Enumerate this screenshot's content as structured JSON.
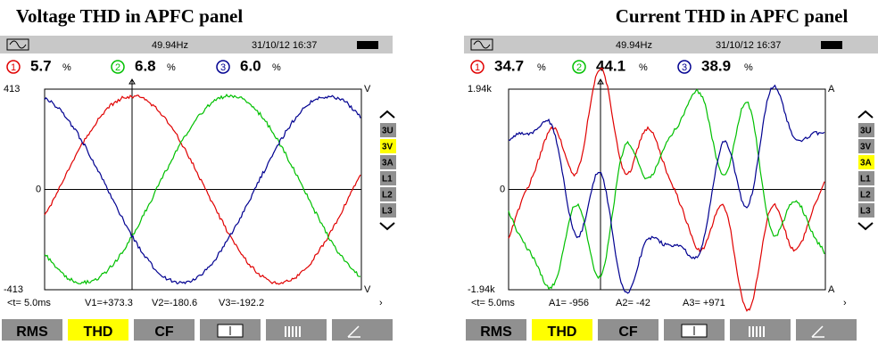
{
  "panels": [
    {
      "title": "Voltage THD in APFC panel",
      "status": {
        "frequency": "49.94Hz",
        "datetime": "31/10/12 16:37"
      },
      "phases": [
        {
          "marker": "1",
          "value": "5.7",
          "unit": "%"
        },
        {
          "marker": "2",
          "value": "6.8",
          "unit": "%"
        },
        {
          "marker": "3",
          "value": "6.0",
          "unit": "%"
        }
      ],
      "y_axis": {
        "max": "413",
        "zero": "0",
        "min": "-413",
        "unit": "V"
      },
      "side_buttons": [
        "3U",
        "3V",
        "3A",
        "L1",
        "L2",
        "L3"
      ],
      "cursor": {
        "time": "<t= 5.0ms",
        "readings": [
          "V1=+373.3",
          "V2=-180.6",
          "V3=-192.2"
        ]
      },
      "tabs": [
        "RMS",
        "THD",
        "CF"
      ]
    },
    {
      "title": "Current THD in APFC panel",
      "status": {
        "frequency": "49.94Hz",
        "datetime": "31/10/12 16:37"
      },
      "phases": [
        {
          "marker": "1",
          "value": "34.7",
          "unit": "%"
        },
        {
          "marker": "2",
          "value": "44.1",
          "unit": "%"
        },
        {
          "marker": "3",
          "value": "38.9",
          "unit": "%"
        }
      ],
      "y_axis": {
        "max": "1.94k",
        "zero": "0",
        "min": "-1.94k",
        "unit": "A"
      },
      "side_buttons": [
        "3U",
        "3V",
        "3A",
        "L1",
        "L2",
        "L3"
      ],
      "cursor": {
        "time": "<t= 5.0ms",
        "readings": [
          "A1= -956",
          "A2= -42",
          "A3= +971"
        ]
      },
      "tabs": [
        "RMS",
        "THD",
        "CF"
      ]
    }
  ]
}
